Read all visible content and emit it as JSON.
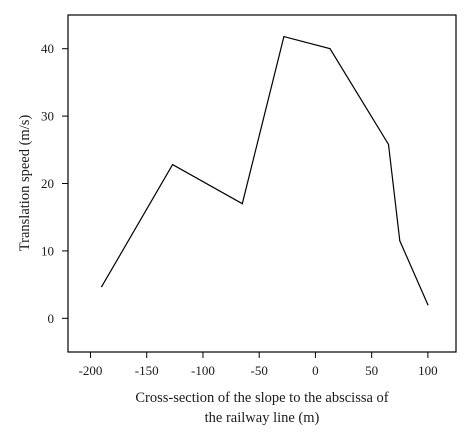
{
  "chart_data": {
    "type": "line",
    "title": "",
    "xlabel": "Cross-section of the slope to the abscissa of the railway line (m)",
    "xlabel_lines": [
      "Cross-section of the slope to the abscissa of",
      "the railway line (m)"
    ],
    "ylabel": "Translation speed (m/s)",
    "xlim": [
      -220,
      125
    ],
    "ylim": [
      -5,
      45
    ],
    "xticks": [
      -200,
      -150,
      -100,
      -50,
      0,
      50,
      100
    ],
    "yticks": [
      0,
      10,
      20,
      30,
      40
    ],
    "grid": false,
    "legend": "none",
    "line_color": "#000000",
    "series": [
      {
        "x": [
          -190,
          -127,
          -65,
          -28,
          13,
          65,
          75,
          100
        ],
        "y": [
          4.7,
          22.8,
          17.0,
          41.8,
          40.0,
          25.8,
          11.5,
          2.0
        ]
      }
    ]
  }
}
